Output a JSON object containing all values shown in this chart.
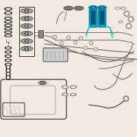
{
  "bg": "#f0ebe0",
  "lc": "#555555",
  "dc": "#222222",
  "mc": "#888888",
  "hc_blue": "#00aacc",
  "hc_dark": "#006688",
  "fig_w": 2.0,
  "fig_h": 2.0,
  "dpi": 100
}
